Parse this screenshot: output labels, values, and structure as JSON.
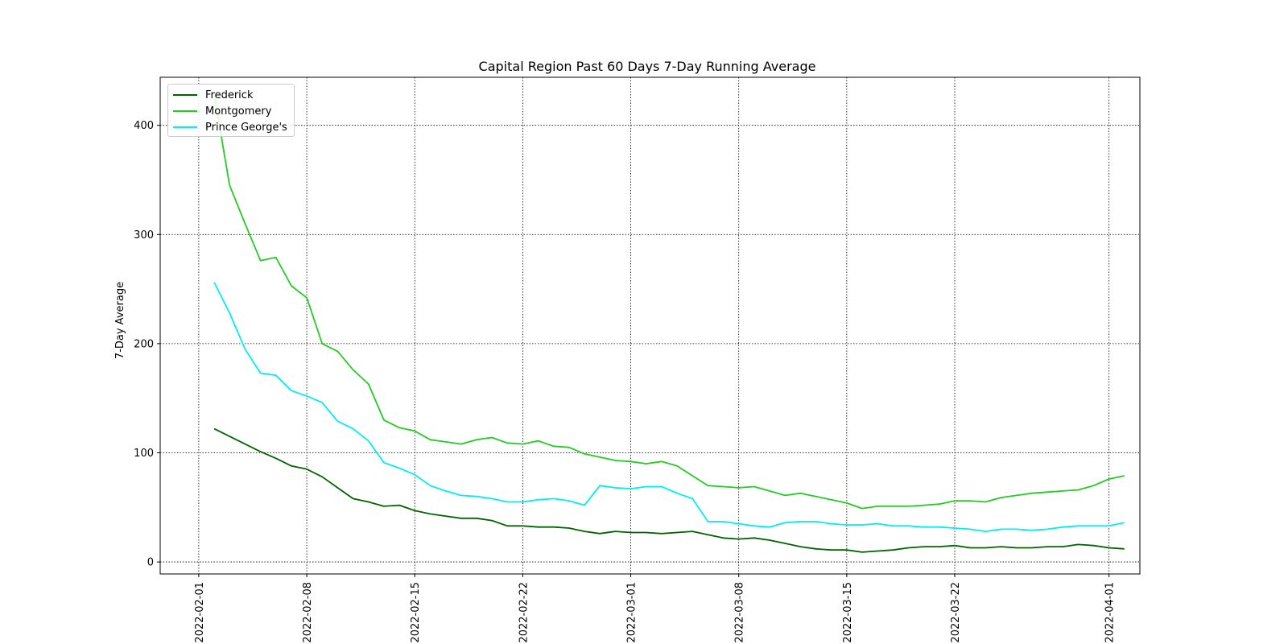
{
  "chart_data": {
    "type": "line",
    "title": "Capital Region Past 60 Days 7-Day Running Average",
    "xlabel": "",
    "ylabel": "7-Day Average",
    "grid": true,
    "legend_placement": "top-left",
    "x_start": "2022-02-02",
    "x_step_days": 1,
    "xlim_days_from_feb1": [
      -2.5,
      61
    ],
    "ylim": [
      -11,
      444
    ],
    "xticks": [
      {
        "label": "2022-02-01",
        "day": 0
      },
      {
        "label": "2022-02-08",
        "day": 7
      },
      {
        "label": "2022-02-15",
        "day": 14
      },
      {
        "label": "2022-02-22",
        "day": 21
      },
      {
        "label": "2022-03-01",
        "day": 28
      },
      {
        "label": "2022-03-08",
        "day": 35
      },
      {
        "label": "2022-03-15",
        "day": 42
      },
      {
        "label": "2022-03-22",
        "day": 49
      },
      {
        "label": "2022-04-01",
        "day": 59
      }
    ],
    "yticks": [
      0,
      100,
      200,
      300,
      400
    ],
    "series": [
      {
        "name": "Frederick",
        "color": "#006400",
        "values": [
          122,
          115,
          108,
          101,
          95,
          88,
          85,
          78,
          68,
          58,
          55,
          51,
          52,
          47,
          44,
          42,
          40,
          40,
          38,
          33,
          33,
          32,
          32,
          31,
          28,
          26,
          28,
          27,
          27,
          26,
          27,
          28,
          25,
          22,
          21,
          22,
          20,
          17,
          14,
          12,
          11,
          11,
          9,
          10,
          11,
          13,
          14,
          14,
          15,
          13,
          13,
          14,
          13,
          13,
          14,
          14,
          16,
          15,
          13,
          12
        ]
      },
      {
        "name": "Montgomery",
        "color": "#22cc22",
        "values": [
          428,
          345,
          310,
          276,
          279,
          253,
          242,
          200,
          193,
          176,
          163,
          130,
          123,
          120,
          112,
          110,
          108,
          112,
          114,
          109,
          108,
          111,
          106,
          105,
          99,
          96,
          93,
          92,
          90,
          92,
          88,
          79,
          70,
          69,
          68,
          69,
          65,
          61,
          63,
          60,
          57,
          54,
          49,
          51,
          51,
          51,
          52,
          53,
          56,
          56,
          55,
          59,
          61,
          63,
          64,
          65,
          66,
          70,
          76,
          79
        ]
      },
      {
        "name": "Prince George's",
        "color": "#00eeee",
        "values": [
          256,
          228,
          195,
          173,
          171,
          157,
          152,
          146,
          129,
          122,
          111,
          91,
          86,
          80,
          70,
          65,
          61,
          60,
          58,
          55,
          55,
          57,
          58,
          56,
          52,
          70,
          68,
          67,
          69,
          69,
          63,
          58,
          37,
          37,
          35,
          33,
          32,
          36,
          37,
          37,
          35,
          34,
          34,
          35,
          33,
          33,
          32,
          32,
          31,
          30,
          28,
          30,
          30,
          29,
          30,
          32,
          33,
          33,
          33,
          36
        ]
      }
    ]
  }
}
